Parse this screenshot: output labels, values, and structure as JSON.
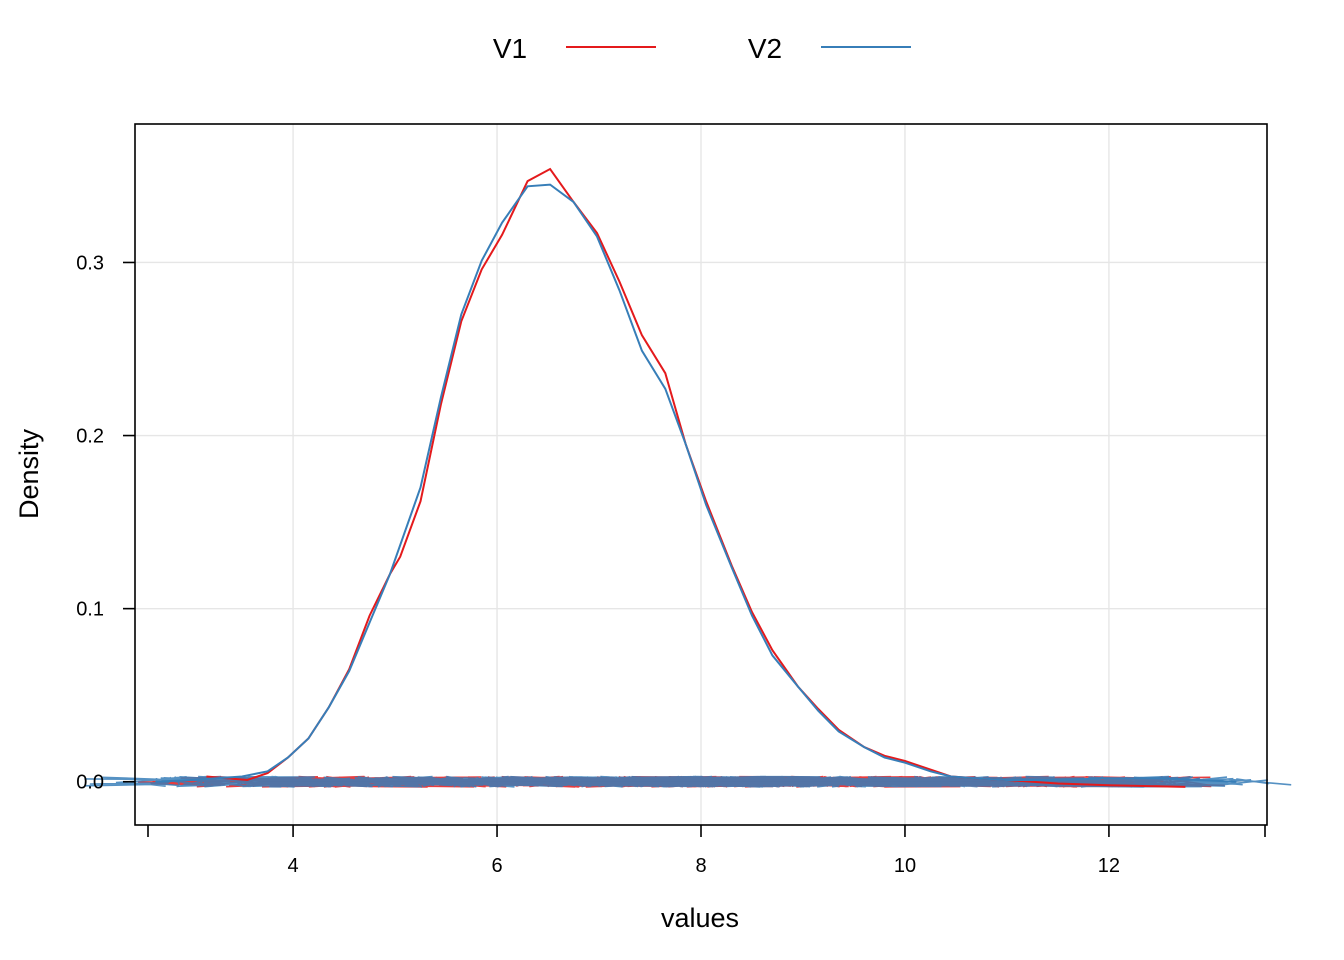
{
  "chart_data": {
    "type": "line",
    "title": "",
    "xlabel": "values",
    "ylabel": "Density",
    "xlim": [
      2.45,
      13.55
    ],
    "ylim": [
      -0.025,
      0.38
    ],
    "x_ticks": [
      {
        "value": 4,
        "label": "4"
      },
      {
        "value": 6,
        "label": "6"
      },
      {
        "value": 8,
        "label": "8"
      },
      {
        "value": 10,
        "label": "10"
      },
      {
        "value": 12,
        "label": "12"
      }
    ],
    "y_ticks": [
      {
        "value": 0.0,
        "label": "0.0"
      },
      {
        "value": 0.1,
        "label": "0.1"
      },
      {
        "value": 0.2,
        "label": "0.2"
      },
      {
        "value": 0.3,
        "label": "0.3"
      }
    ],
    "grid": true,
    "legend_position": "top",
    "series": [
      {
        "name": "V1",
        "color": "#e41a1c",
        "x": [
          3.15,
          3.55,
          3.75,
          3.95,
          4.15,
          4.35,
          4.55,
          4.75,
          4.95,
          5.05,
          5.25,
          5.45,
          5.65,
          5.85,
          6.05,
          6.3,
          6.52,
          6.75,
          6.98,
          7.2,
          7.42,
          7.65,
          7.85,
          8.05,
          8.3,
          8.5,
          8.7,
          8.95,
          9.15,
          9.35,
          9.6,
          9.8,
          10.0,
          10.25,
          10.45,
          10.7,
          11.0,
          11.5,
          12.0,
          12.75
        ],
        "y": [
          0.003,
          0.001,
          0.005,
          0.014,
          0.025,
          0.043,
          0.065,
          0.096,
          0.12,
          0.13,
          0.162,
          0.218,
          0.266,
          0.296,
          0.316,
          0.347,
          0.354,
          0.335,
          0.317,
          0.289,
          0.258,
          0.236,
          0.195,
          0.162,
          0.125,
          0.098,
          0.076,
          0.055,
          0.042,
          0.03,
          0.02,
          0.015,
          0.012,
          0.007,
          0.003,
          0.002,
          0.001,
          -0.001,
          -0.002,
          -0.003
        ],
        "rug_range": [
          3.2,
          12.7
        ]
      },
      {
        "name": "V2",
        "color": "#377eb8",
        "x": [
          2.65,
          3.0,
          3.5,
          3.75,
          3.95,
          4.15,
          4.35,
          4.55,
          4.75,
          4.95,
          5.25,
          5.45,
          5.65,
          5.85,
          6.05,
          6.3,
          6.52,
          6.75,
          6.98,
          7.2,
          7.42,
          7.65,
          7.85,
          8.05,
          8.3,
          8.5,
          8.7,
          8.95,
          9.15,
          9.35,
          9.6,
          9.8,
          10.0,
          10.25,
          10.45,
          10.7,
          11.0,
          11.5,
          12.0,
          12.5,
          13.25
        ],
        "y": [
          0.0,
          0.001,
          0.003,
          0.006,
          0.014,
          0.025,
          0.043,
          0.064,
          0.092,
          0.12,
          0.17,
          0.222,
          0.27,
          0.301,
          0.323,
          0.344,
          0.345,
          0.335,
          0.315,
          0.284,
          0.249,
          0.227,
          0.195,
          0.16,
          0.124,
          0.096,
          0.073,
          0.055,
          0.041,
          0.029,
          0.02,
          0.014,
          0.011,
          0.006,
          0.003,
          0.002,
          0.001,
          0.001,
          0.002,
          0.002,
          0.0
        ],
        "rug_range": [
          2.65,
          13.25
        ]
      }
    ]
  }
}
